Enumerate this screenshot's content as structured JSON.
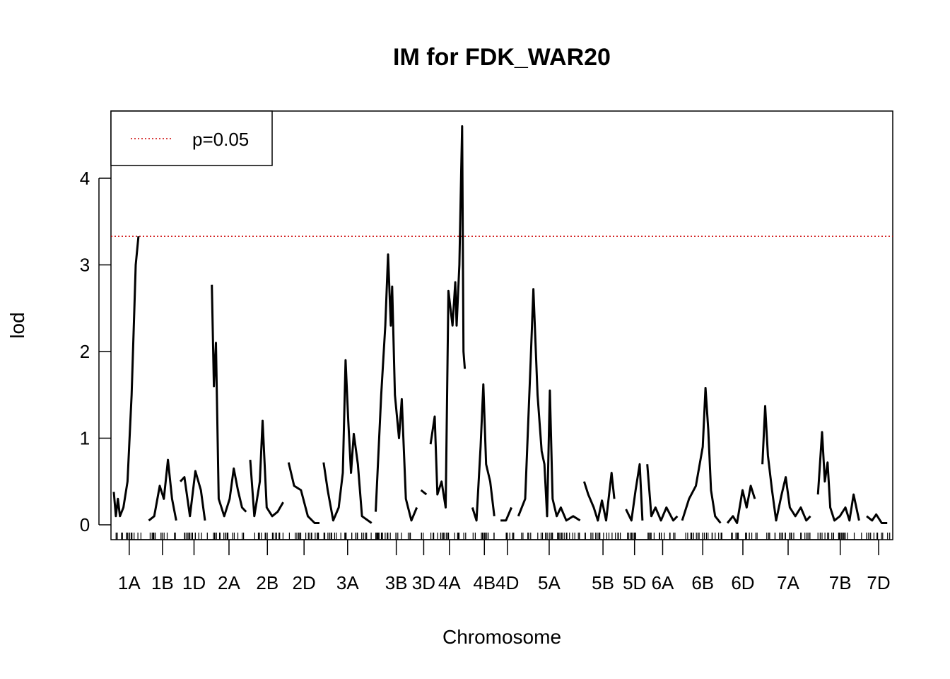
{
  "chart_data": {
    "type": "line",
    "title": "IM for FDK_WAR20",
    "xlabel": "Chromosome",
    "ylabel": "lod",
    "ylim": [
      0,
      4.8
    ],
    "yticks": [
      0,
      1,
      2,
      3,
      4
    ],
    "grid": false,
    "legend": {
      "placement": "top-left",
      "entries": [
        {
          "label": "p=0.05",
          "color": "#cc0000",
          "style": "dotted"
        }
      ]
    },
    "threshold": {
      "label": "p=0.05",
      "value": 3.33,
      "color": "#cc0000"
    },
    "line_color": "#000000",
    "chromosomes": [
      {
        "name": "1A",
        "length": 45,
        "peaks": [
          [
            0,
            0.38
          ],
          [
            3,
            0.1
          ],
          [
            6,
            0.3
          ],
          [
            9,
            0.1
          ],
          [
            14,
            0.2
          ],
          [
            20,
            0.5
          ],
          [
            26,
            1.5
          ],
          [
            30,
            2.5
          ],
          [
            32,
            3.0
          ],
          [
            36,
            3.33
          ]
        ]
      },
      {
        "name": "1B",
        "length": 40,
        "peaks": [
          [
            0,
            0.05
          ],
          [
            8,
            0.1
          ],
          [
            16,
            0.45
          ],
          [
            22,
            0.3
          ],
          [
            28,
            0.75
          ],
          [
            34,
            0.3
          ],
          [
            40,
            0.05
          ]
        ]
      },
      {
        "name": "1D",
        "length": 40,
        "peaks": [
          [
            0,
            0.5
          ],
          [
            6,
            0.55
          ],
          [
            14,
            0.1
          ],
          [
            22,
            0.62
          ],
          [
            30,
            0.4
          ],
          [
            36,
            0.05
          ]
        ]
      },
      {
        "name": "2A",
        "length": 50,
        "peaks": [
          [
            0,
            2.77
          ],
          [
            3,
            1.6
          ],
          [
            6,
            2.1
          ],
          [
            10,
            0.3
          ],
          [
            18,
            0.1
          ],
          [
            26,
            0.3
          ],
          [
            32,
            0.65
          ],
          [
            38,
            0.4
          ],
          [
            44,
            0.2
          ],
          [
            50,
            0.15
          ]
        ]
      },
      {
        "name": "2B",
        "length": 50,
        "peaks": [
          [
            0,
            0.75
          ],
          [
            6,
            0.1
          ],
          [
            14,
            0.5
          ],
          [
            18,
            1.2
          ],
          [
            24,
            0.2
          ],
          [
            32,
            0.1
          ],
          [
            40,
            0.15
          ],
          [
            48,
            0.26
          ]
        ]
      },
      {
        "name": "2D",
        "length": 45,
        "peaks": [
          [
            0,
            0.72
          ],
          [
            8,
            0.45
          ],
          [
            18,
            0.4
          ],
          [
            28,
            0.1
          ],
          [
            38,
            0.02
          ],
          [
            45,
            0.02
          ]
        ]
      },
      {
        "name": "3A",
        "length": 70,
        "peaks": [
          [
            0,
            0.72
          ],
          [
            6,
            0.4
          ],
          [
            14,
            0.05
          ],
          [
            22,
            0.2
          ],
          [
            28,
            0.6
          ],
          [
            32,
            1.9
          ],
          [
            36,
            1.2
          ],
          [
            40,
            0.6
          ],
          [
            44,
            1.05
          ],
          [
            50,
            0.7
          ],
          [
            56,
            0.1
          ],
          [
            70,
            0.02
          ]
        ]
      },
      {
        "name": "3B",
        "length": 60,
        "peaks": [
          [
            0,
            0.15
          ],
          [
            8,
            1.5
          ],
          [
            14,
            2.3
          ],
          [
            18,
            3.12
          ],
          [
            22,
            2.3
          ],
          [
            24,
            2.75
          ],
          [
            28,
            1.5
          ],
          [
            34,
            1.0
          ],
          [
            38,
            1.45
          ],
          [
            44,
            0.3
          ],
          [
            52,
            0.05
          ],
          [
            60,
            0.2
          ]
        ]
      },
      {
        "name": "3D",
        "length": 8,
        "peaks": [
          [
            0,
            0.4
          ],
          [
            8,
            0.35
          ]
        ]
      },
      {
        "name": "4A",
        "length": 55,
        "peaks": [
          [
            0,
            0.93
          ],
          [
            6,
            1.25
          ],
          [
            10,
            0.35
          ],
          [
            16,
            0.5
          ],
          [
            22,
            0.2
          ],
          [
            26,
            2.7
          ],
          [
            32,
            2.3
          ],
          [
            36,
            2.8
          ],
          [
            38,
            2.3
          ],
          [
            42,
            3.0
          ],
          [
            44,
            3.8
          ],
          [
            46,
            4.6
          ],
          [
            48,
            2.0
          ],
          [
            50,
            1.8
          ]
        ]
      },
      {
        "name": "4B",
        "length": 35,
        "peaks": [
          [
            0,
            0.2
          ],
          [
            6,
            0.05
          ],
          [
            12,
            0.9
          ],
          [
            16,
            1.62
          ],
          [
            20,
            0.7
          ],
          [
            26,
            0.5
          ],
          [
            32,
            0.1
          ]
        ]
      },
      {
        "name": "4D",
        "length": 20,
        "peaks": [
          [
            0,
            0.05
          ],
          [
            8,
            0.05
          ],
          [
            16,
            0.2
          ]
        ]
      },
      {
        "name": "5A",
        "length": 90,
        "peaks": [
          [
            0,
            0.1
          ],
          [
            10,
            0.3
          ],
          [
            18,
            1.9
          ],
          [
            22,
            2.72
          ],
          [
            28,
            1.5
          ],
          [
            34,
            0.85
          ],
          [
            38,
            0.7
          ],
          [
            42,
            0.1
          ],
          [
            46,
            1.55
          ],
          [
            50,
            0.3
          ],
          [
            56,
            0.1
          ],
          [
            62,
            0.2
          ],
          [
            70,
            0.05
          ],
          [
            80,
            0.1
          ],
          [
            90,
            0.05
          ]
        ]
      },
      {
        "name": "5B",
        "length": 55,
        "peaks": [
          [
            0,
            0.5
          ],
          [
            6,
            0.35
          ],
          [
            14,
            0.2
          ],
          [
            20,
            0.05
          ],
          [
            26,
            0.28
          ],
          [
            32,
            0.05
          ],
          [
            40,
            0.6
          ],
          [
            44,
            0.3
          ]
        ]
      },
      {
        "name": "5D",
        "length": 25,
        "peaks": [
          [
            0,
            0.18
          ],
          [
            8,
            0.05
          ],
          [
            14,
            0.4
          ],
          [
            20,
            0.7
          ],
          [
            24,
            0.05
          ]
        ]
      },
      {
        "name": "6A",
        "length": 45,
        "peaks": [
          [
            0,
            0.7
          ],
          [
            6,
            0.1
          ],
          [
            12,
            0.2
          ],
          [
            20,
            0.05
          ],
          [
            28,
            0.2
          ],
          [
            38,
            0.05
          ],
          [
            44,
            0.1
          ]
        ]
      },
      {
        "name": "6B",
        "length": 60,
        "peaks": [
          [
            0,
            0.05
          ],
          [
            10,
            0.3
          ],
          [
            20,
            0.45
          ],
          [
            30,
            0.9
          ],
          [
            34,
            1.58
          ],
          [
            38,
            1.1
          ],
          [
            42,
            0.4
          ],
          [
            48,
            0.1
          ],
          [
            56,
            0.02
          ]
        ]
      },
      {
        "name": "6D",
        "length": 45,
        "peaks": [
          [
            0,
            0.02
          ],
          [
            8,
            0.1
          ],
          [
            14,
            0.02
          ],
          [
            22,
            0.4
          ],
          [
            28,
            0.2
          ],
          [
            34,
            0.45
          ],
          [
            40,
            0.3
          ]
        ]
      },
      {
        "name": "7A",
        "length": 75,
        "peaks": [
          [
            0,
            0.7
          ],
          [
            4,
            1.37
          ],
          [
            8,
            0.8
          ],
          [
            14,
            0.4
          ],
          [
            20,
            0.05
          ],
          [
            28,
            0.35
          ],
          [
            34,
            0.55
          ],
          [
            40,
            0.2
          ],
          [
            48,
            0.1
          ],
          [
            56,
            0.2
          ],
          [
            64,
            0.05
          ],
          [
            70,
            0.1
          ]
        ]
      },
      {
        "name": "7B",
        "length": 65,
        "peaks": [
          [
            0,
            0.35
          ],
          [
            6,
            1.07
          ],
          [
            10,
            0.5
          ],
          [
            14,
            0.72
          ],
          [
            18,
            0.2
          ],
          [
            24,
            0.05
          ],
          [
            32,
            0.1
          ],
          [
            40,
            0.2
          ],
          [
            46,
            0.05
          ],
          [
            52,
            0.35
          ],
          [
            60,
            0.05
          ]
        ]
      },
      {
        "name": "7D",
        "length": 35,
        "peaks": [
          [
            0,
            0.1
          ],
          [
            8,
            0.05
          ],
          [
            14,
            0.12
          ],
          [
            22,
            0.02
          ],
          [
            30,
            0.02
          ]
        ]
      }
    ]
  }
}
